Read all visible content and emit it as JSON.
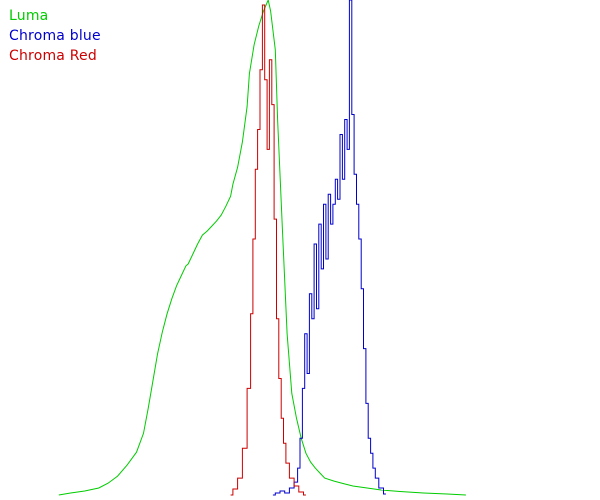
{
  "chart_data": {
    "type": "line",
    "title": "",
    "xlabel": "",
    "ylabel": "",
    "grid": false,
    "legend": {
      "position": "top-left"
    },
    "xlim": [
      0,
      255
    ],
    "ylim": [
      0,
      100
    ],
    "series": [
      {
        "name": "Luma",
        "color": "#00cc00",
        "line": "smooth",
        "x": [
          25,
          30,
          36,
          42,
          46,
          50,
          54,
          58,
          61,
          63,
          65,
          67,
          69,
          71,
          73,
          75,
          77,
          79,
          80,
          82,
          84,
          86,
          88,
          90,
          92,
          94,
          96,
          98,
          99,
          101,
          103,
          105,
          106,
          108,
          110,
          112,
          114,
          115,
          117,
          118,
          120,
          122,
          124,
          126,
          128,
          130,
          132,
          134,
          136,
          138,
          142,
          146,
          150,
          156,
          162,
          170,
          180,
          190,
          198
        ],
        "y": [
          0.6,
          1.0,
          1.4,
          2.0,
          3.0,
          4.4,
          6.6,
          9.2,
          13.0,
          18.0,
          23.5,
          29.0,
          33.4,
          37.0,
          40.0,
          42.6,
          44.6,
          46.6,
          47.0,
          49.0,
          51.0,
          52.8,
          53.6,
          54.6,
          55.6,
          56.8,
          58.6,
          60.6,
          63.0,
          66.4,
          71.5,
          78.6,
          85.2,
          91.0,
          94.8,
          97.8,
          100.0,
          97.8,
          90.0,
          76.0,
          54.0,
          33.0,
          21.0,
          16.0,
          12.0,
          9.0,
          7.2,
          6.0,
          5.0,
          4.0,
          3.4,
          2.9,
          2.4,
          2.0,
          1.6,
          1.3,
          1.0,
          0.8,
          0.6
        ]
      },
      {
        "name": "Chroma blue",
        "color": "#0000cc",
        "line": "step",
        "x": [
          116,
          118,
          120,
          122,
          124,
          126,
          127,
          128,
          129,
          130,
          131,
          132,
          133,
          134,
          135,
          136,
          137,
          138,
          139,
          140,
          141,
          142,
          143,
          144,
          145,
          146,
          147,
          148,
          149,
          150,
          151,
          152,
          153,
          154,
          155,
          156,
          157,
          158,
          159,
          160,
          162,
          164
        ],
        "y": [
          0.6,
          1.0,
          1.4,
          1.0,
          2.0,
          3.2,
          6.0,
          12.0,
          22.0,
          33.0,
          25.0,
          41.0,
          36.0,
          51.0,
          38.0,
          55.0,
          46.0,
          59.0,
          48.0,
          61.0,
          55.0,
          59.0,
          64.0,
          60.0,
          73.0,
          64.0,
          76.0,
          70.0,
          100.0,
          77.0,
          65.0,
          59.0,
          52.0,
          42.0,
          30.0,
          19.0,
          12.0,
          9.0,
          6.0,
          4.0,
          2.0,
          0.8
        ]
      },
      {
        "name": "Chroma Red",
        "color": "#cc0000",
        "line": "step",
        "x": [
          98,
          100,
          102,
          104,
          106,
          107,
          108,
          109,
          110,
          111,
          112,
          113,
          114,
          115,
          116,
          117,
          118,
          119,
          120,
          121,
          122,
          124,
          126,
          128,
          130
        ],
        "y": [
          0.6,
          1.8,
          4.0,
          10.0,
          22.0,
          37.0,
          52.0,
          66.0,
          74.0,
          86.0,
          99.0,
          84.0,
          70.0,
          88.0,
          79.0,
          56.0,
          36.0,
          24.0,
          16.0,
          11.0,
          7.0,
          4.0,
          2.4,
          1.2,
          0.6
        ]
      }
    ]
  }
}
